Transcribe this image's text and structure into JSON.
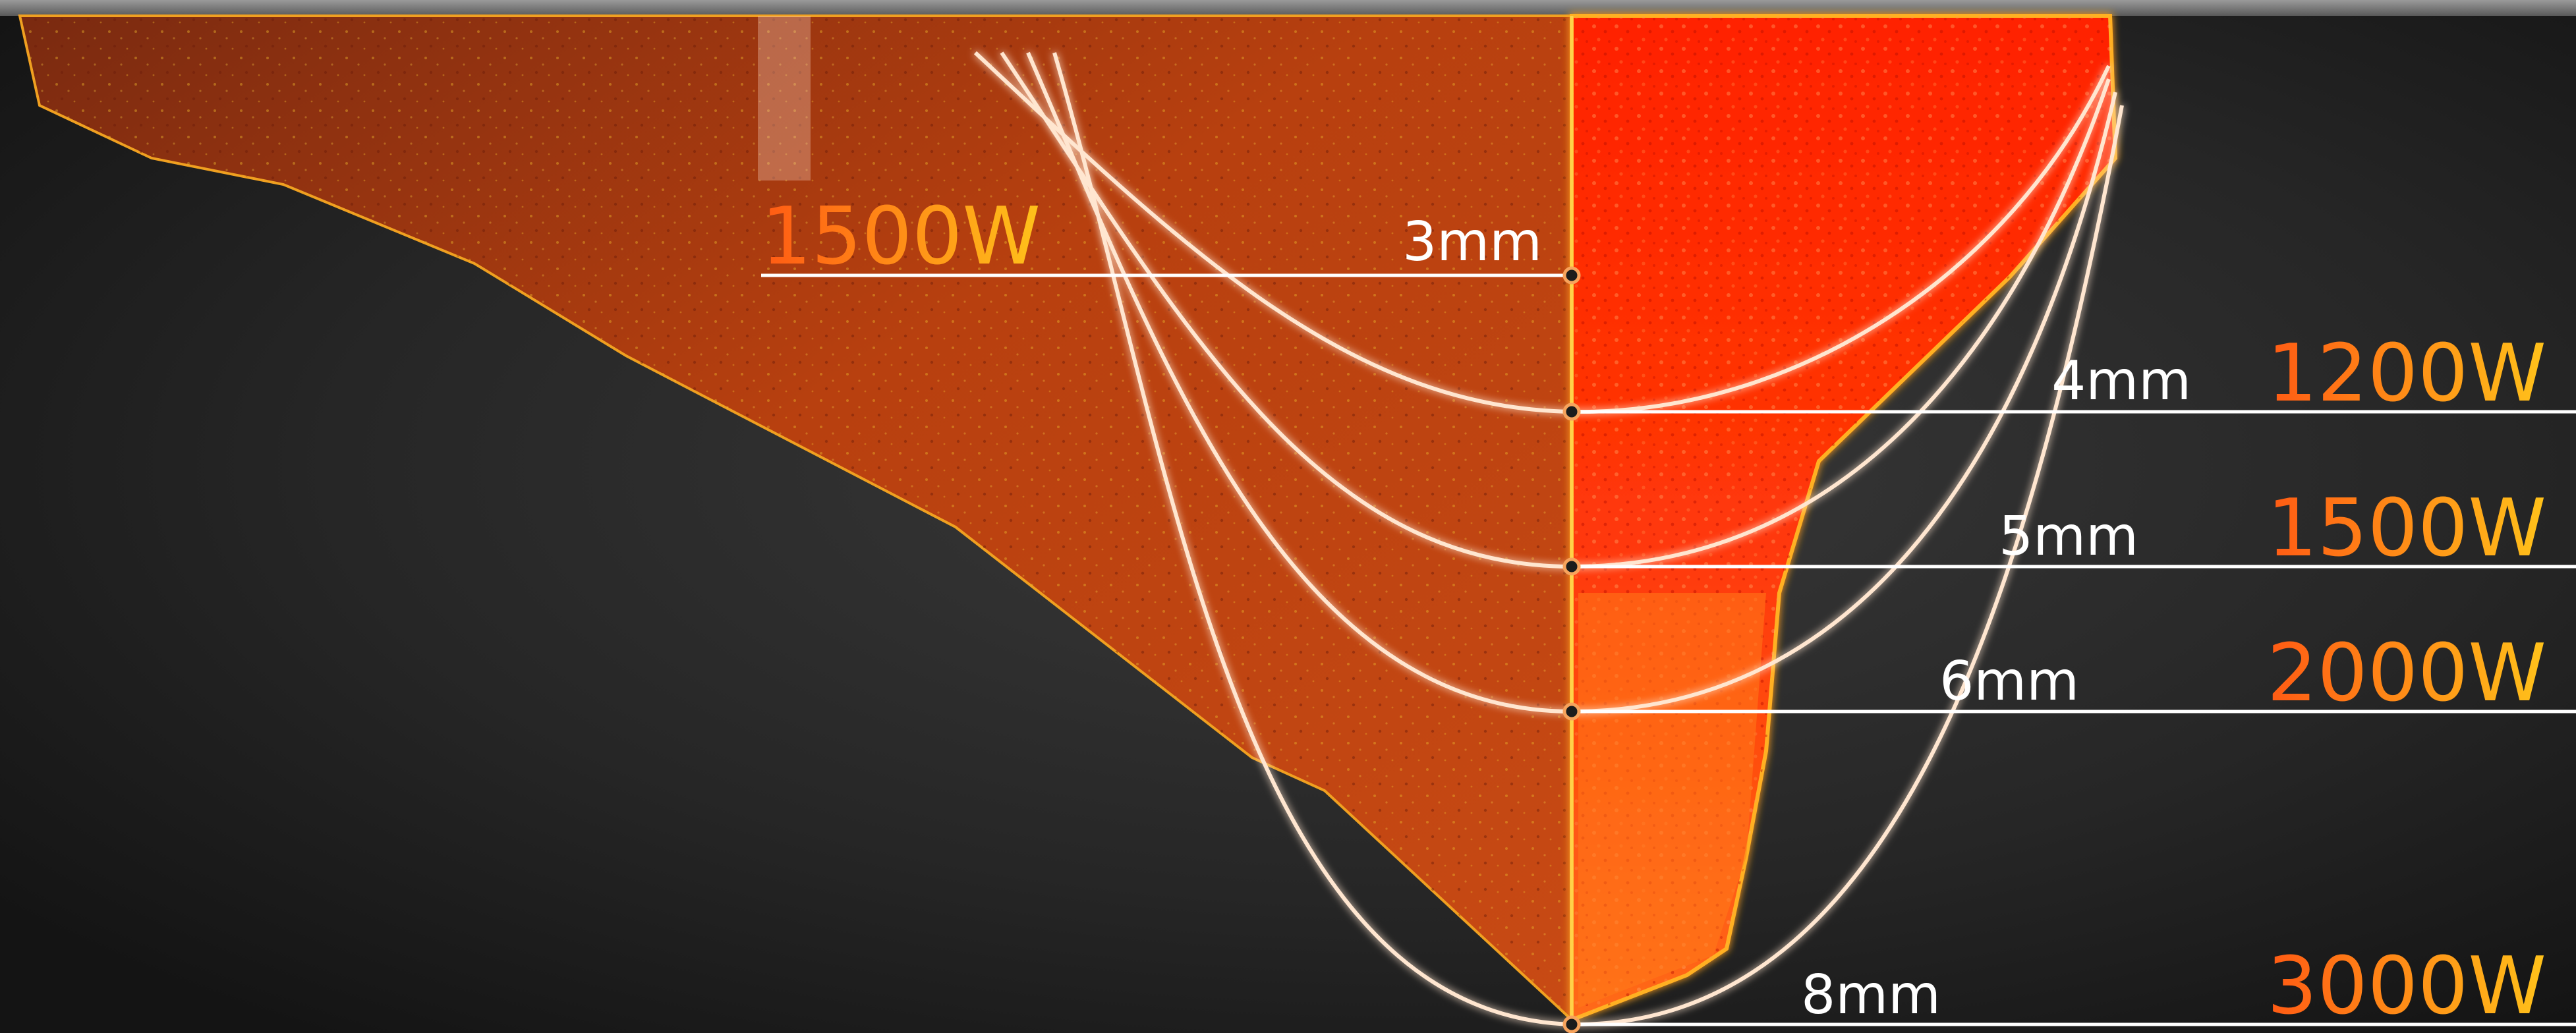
{
  "diagram": {
    "left_power": "1500W",
    "depths": [
      {
        "depth": "3mm",
        "power": ""
      },
      {
        "depth": "4mm",
        "power": "1200W"
      },
      {
        "depth": "5mm",
        "power": "1500W"
      },
      {
        "depth": "6mm",
        "power": "2000W"
      },
      {
        "depth": "8mm",
        "power": "3000W"
      }
    ],
    "colors": {
      "background": "#2a2a2a",
      "weld_hot": "#ff2a00",
      "weld_warm": "#d8480f",
      "power_gradient_start": "#ff5a14",
      "power_gradient_end": "#ffc21a",
      "line": "#ffffff",
      "node": "#f7a35c"
    }
  }
}
